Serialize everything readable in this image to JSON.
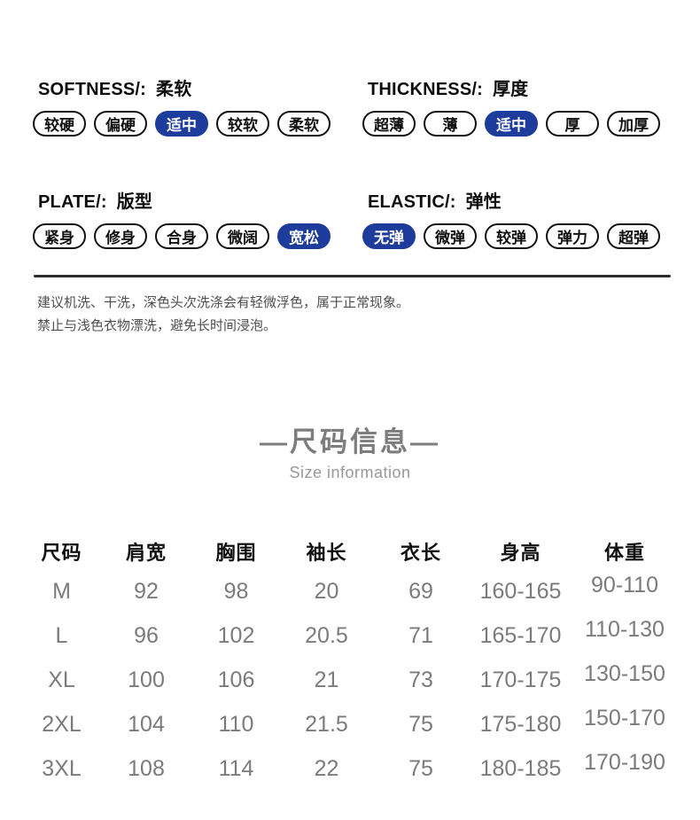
{
  "colors": {
    "accent_blue": "#1d3c9b",
    "pill_border": "#111111",
    "divider": "#2b2b2b",
    "note_text": "#4f4f4f",
    "title_gray": "#7d7d7d",
    "table_value_gray": "#7b7b7b"
  },
  "attributes": [
    {
      "name_en": "SOFTNESS/:",
      "name_zh": "柔软",
      "options": [
        "较硬",
        "偏硬",
        "适中",
        "较软",
        "柔软"
      ],
      "selected_index": 2
    },
    {
      "name_en": "THICKNESS/:",
      "name_zh": "厚度",
      "options": [
        "超薄",
        "薄",
        "适中",
        "厚",
        "加厚"
      ],
      "selected_index": 2
    },
    {
      "name_en": "PLATE/:",
      "name_zh": "版型",
      "options": [
        "紧身",
        "修身",
        "合身",
        "微阔",
        "宽松"
      ],
      "selected_index": 4
    },
    {
      "name_en": "ELASTIC/:",
      "name_zh": "弹性",
      "options": [
        "无弹",
        "微弹",
        "较弹",
        "弹力",
        "超弹"
      ],
      "selected_index": 0
    }
  ],
  "care_note": {
    "line1": "建议机洗、干洗，深色头次洗涤会有轻微浮色，属于正常现象。",
    "line2": "禁止与浅色衣物漂洗，避免长时间浸泡。"
  },
  "size_section": {
    "title": "—尺码信息—",
    "subtitle": "Size information"
  },
  "size_table": {
    "headers": [
      "尺码",
      "肩宽",
      "胸围",
      "袖长",
      "衣长",
      "身高",
      "体重"
    ],
    "rows": [
      [
        "M",
        "92",
        "98",
        "20",
        "69",
        "160-165",
        "90-110"
      ],
      [
        "L",
        "96",
        "102",
        "20.5",
        "71",
        "165-170",
        "110-130"
      ],
      [
        "XL",
        "100",
        "106",
        "21",
        "73",
        "170-175",
        "130-150"
      ],
      [
        "2XL",
        "104",
        "110",
        "21.5",
        "75",
        "175-180",
        "150-170"
      ],
      [
        "3XL",
        "108",
        "114",
        "22",
        "75",
        "180-185",
        "170-190"
      ]
    ]
  }
}
